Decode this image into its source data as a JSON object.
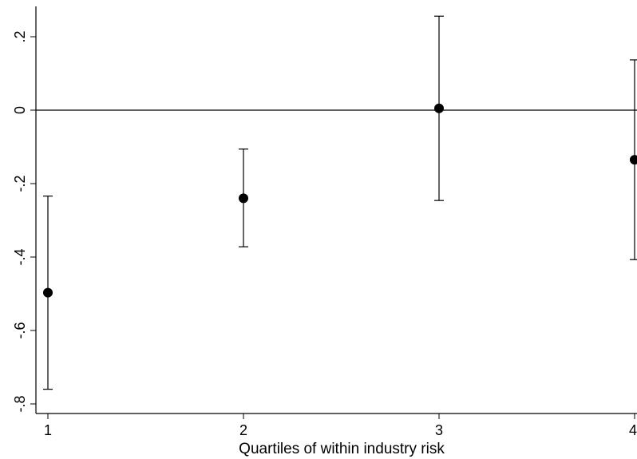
{
  "chart_data": {
    "type": "scatter",
    "title": "",
    "xlabel": "Quartiles of within industry risk",
    "ylabel": "",
    "xlim": [
      1,
      4
    ],
    "ylim": [
      -0.8,
      0.25
    ],
    "x_ticks": [
      1,
      2,
      3,
      4
    ],
    "x_tick_labels": [
      "1",
      "2",
      "3",
      "4"
    ],
    "y_ticks": [
      -0.8,
      -0.6,
      -0.4,
      -0.2,
      0,
      0.2
    ],
    "y_tick_labels": [
      "-.8",
      "-.6",
      "-.4",
      "-.2",
      "0",
      ".2"
    ],
    "reference_line_y": 0,
    "grid": false,
    "legend": "none",
    "series": [
      {
        "x": [
          1,
          2,
          3,
          4
        ],
        "y": [
          -0.497,
          -0.24,
          0.005,
          -0.135
        ],
        "ci_lower": [
          -0.76,
          -0.372,
          -0.246,
          -0.407
        ],
        "ci_upper": [
          -0.234,
          -0.106,
          0.256,
          0.137
        ]
      }
    ]
  }
}
